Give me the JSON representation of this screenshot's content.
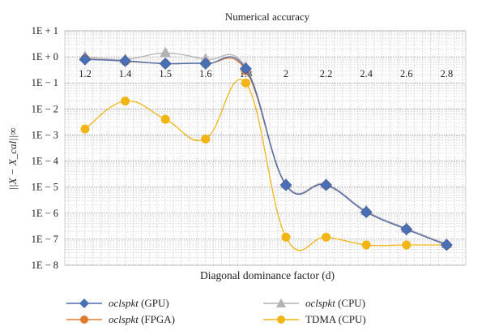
{
  "chart_data": {
    "type": "line",
    "title": "Numerical accuracy",
    "xlabel": "Diagonal dominance factor (d)",
    "ylabel": "||X − X_cal||∞",
    "x_tick_labels": [
      "1.2",
      "1.4",
      "1.5",
      "1.6",
      "1.8",
      "2",
      "2.2",
      "2.4",
      "2.6",
      "2.8"
    ],
    "y_tick_labels": [
      "1E − 8",
      "1E − 7",
      "1E − 6",
      "1E − 5",
      "1E − 4",
      "1E − 3",
      "1E − 2",
      "1E − 1",
      "1E + 0",
      "1E + 1"
    ],
    "y_scale": "log",
    "ylim_exponent": [
      -8,
      1
    ],
    "grid": true,
    "legend_position": "bottom",
    "series": [
      {
        "name": "oclspkt (GPU)",
        "name_italic": "oclspkt",
        "name_rest": " (GPU)",
        "color": "#4a6fb5",
        "marker": "diamond",
        "values": [
          0.8,
          0.7,
          0.55,
          0.55,
          0.35,
          1.2e-05,
          1.2e-05,
          1.1e-06,
          2.4e-07,
          6e-08
        ]
      },
      {
        "name": "oclspkt (FPGA)",
        "name_italic": "oclspkt",
        "name_rest": " (FPGA)",
        "color": "#e07b2e",
        "marker": "circle",
        "values": [
          0.85,
          0.68,
          0.55,
          0.55,
          0.3,
          1.2e-05,
          1.2e-05,
          1.1e-06,
          2.4e-07,
          6e-08
        ]
      },
      {
        "name": "oclspkt (CPU)",
        "name_italic": "oclspkt",
        "name_rest": " (CPU)",
        "color": "#b3b3b3",
        "marker": "triangle",
        "values": [
          1.0,
          0.8,
          1.4,
          0.8,
          0.4,
          1.3e-05,
          1.3e-05,
          1.2e-06,
          2.6e-07,
          6.5e-08
        ]
      },
      {
        "name": "TDMA (CPU)",
        "name_italic": "",
        "name_rest": "TDMA (CPU)",
        "color": "#f2b514",
        "marker": "circle",
        "values": [
          0.0017,
          0.02,
          0.004,
          0.0007,
          0.1,
          1.2e-07,
          1.2e-07,
          6e-08,
          6e-08,
          6e-08
        ]
      }
    ]
  }
}
